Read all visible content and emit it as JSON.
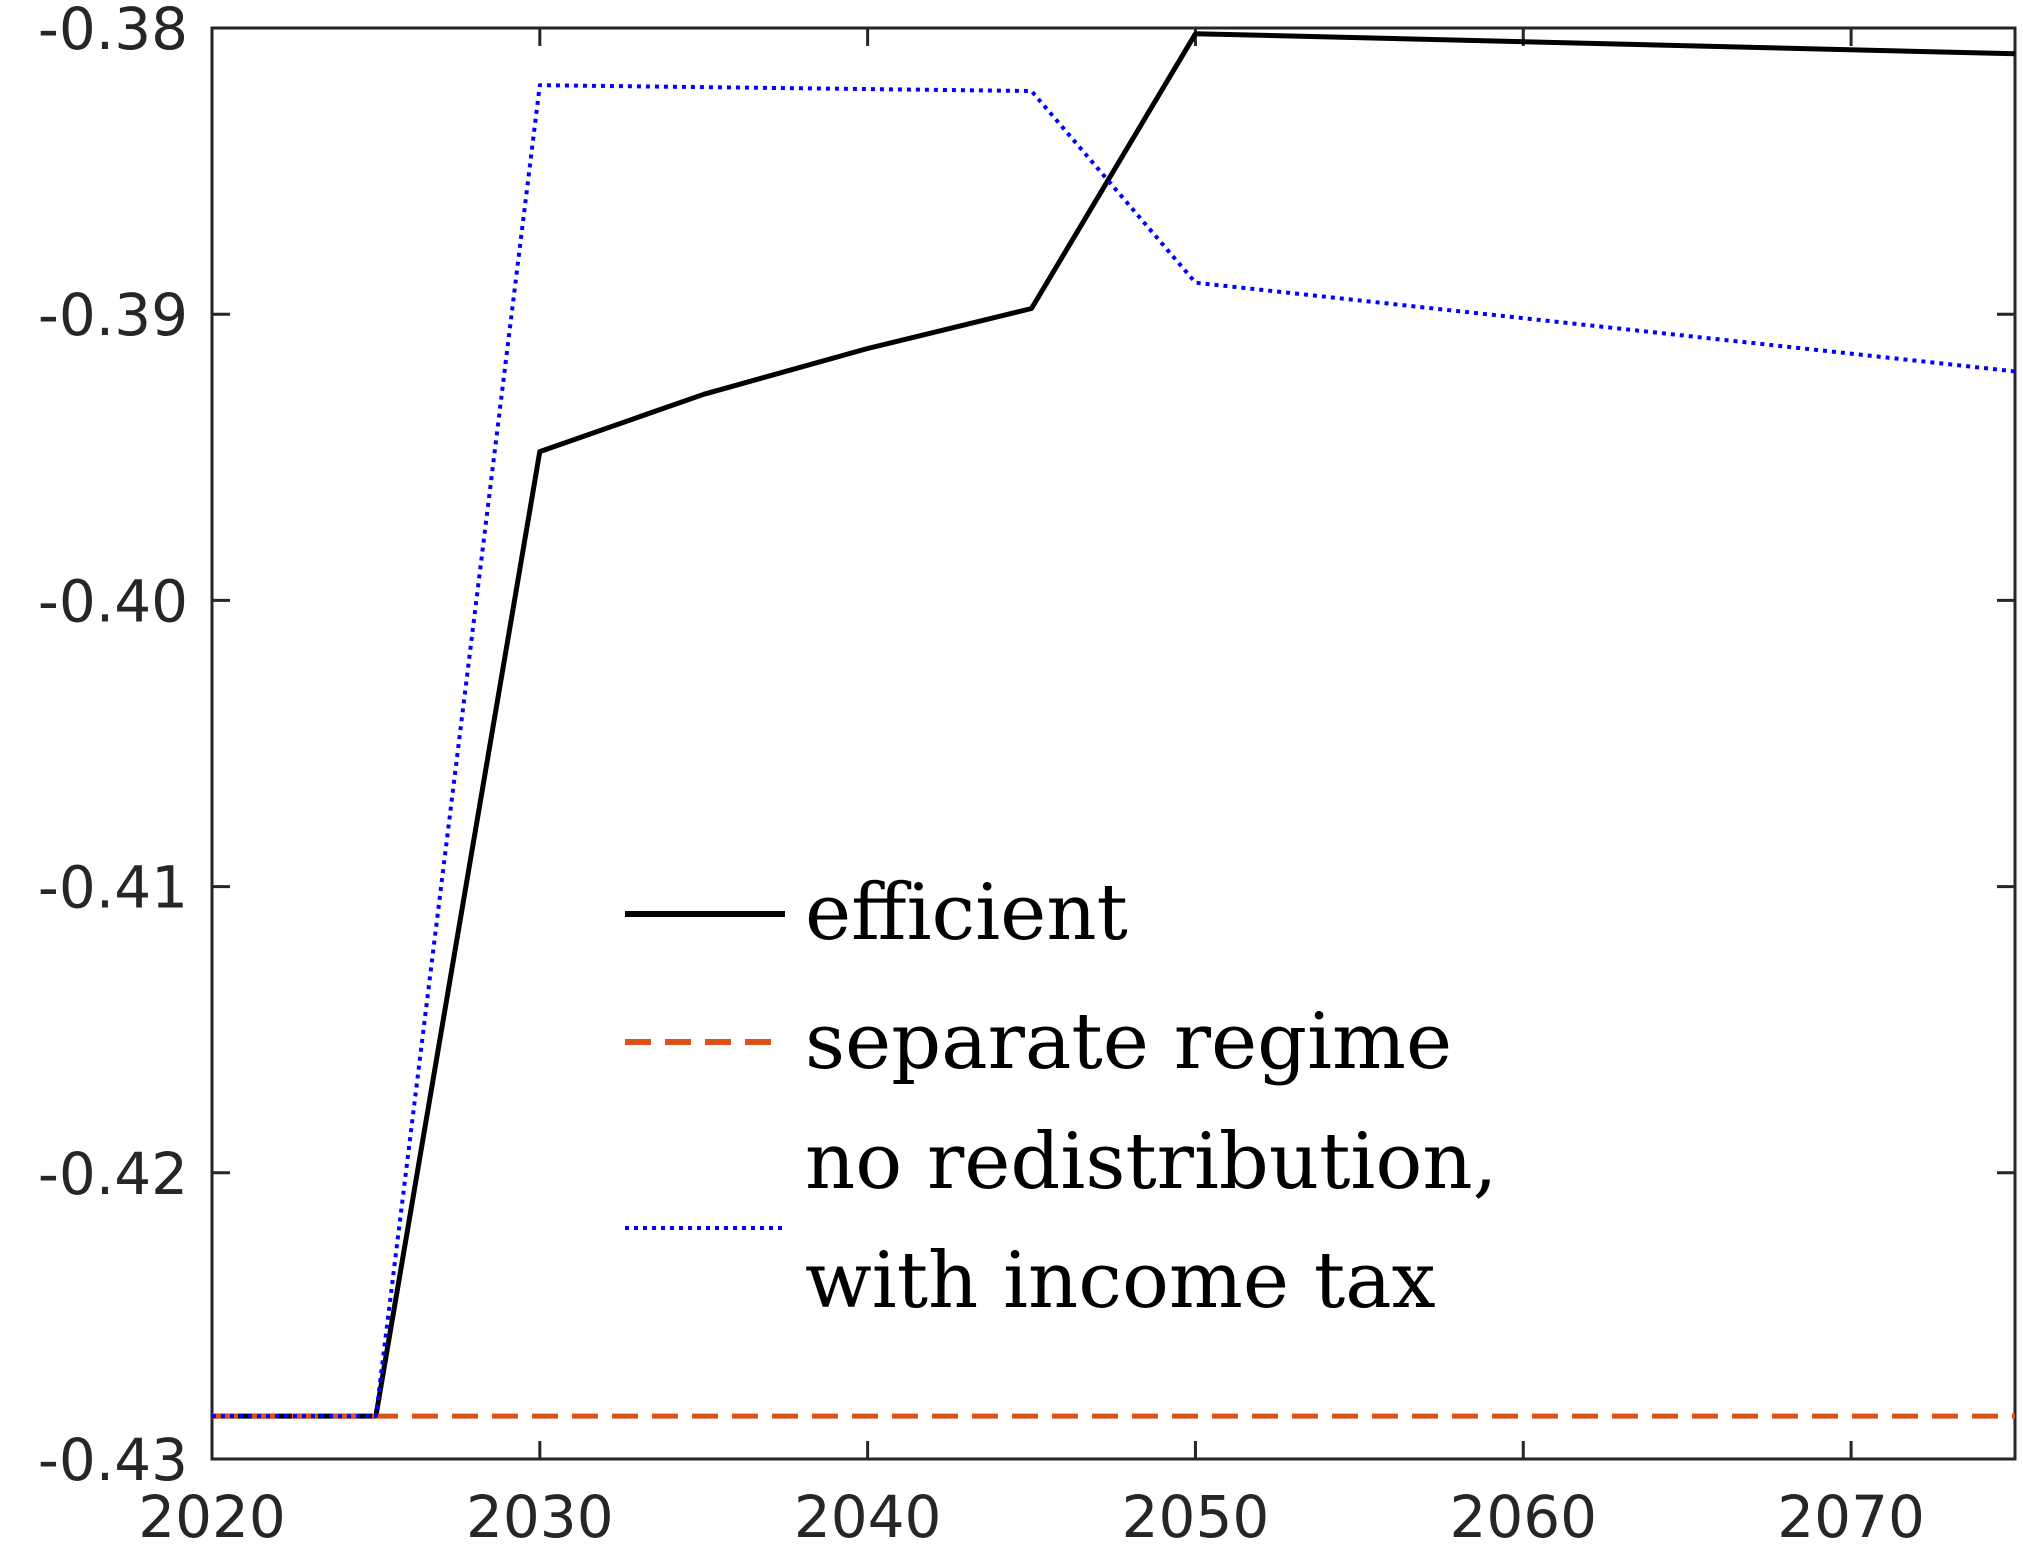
{
  "chart_data": {
    "type": "line",
    "title": "",
    "xlabel": "",
    "ylabel": "",
    "xlim": [
      2020,
      2075
    ],
    "ylim": [
      -0.43,
      -0.38
    ],
    "xticks": [
      "2020",
      "2030",
      "2040",
      "2050",
      "2060",
      "2070"
    ],
    "yticks": [
      "-0.38",
      "-0.39",
      "-0.40",
      "-0.41",
      "-0.42",
      "-0.43"
    ],
    "grid": false,
    "legend": {
      "placement": "center",
      "entries": [
        "efficient",
        "separate regime",
        "no redistribution,",
        "with income tax"
      ]
    },
    "series": [
      {
        "name": "efficient",
        "color": "#000000",
        "style": "solid",
        "x": [
          2020,
          2025,
          2030,
          2035,
          2040,
          2045,
          2050,
          2075
        ],
        "y": [
          -0.4285,
          -0.4285,
          -0.3948,
          -0.3928,
          -0.3912,
          -0.3898,
          -0.3802,
          -0.3809
        ]
      },
      {
        "name": "separate regime",
        "color": "#d95319",
        "style": "dashed",
        "x": [
          2020,
          2075
        ],
        "y": [
          -0.4285,
          -0.4285
        ]
      },
      {
        "name": "no redistribution, with income tax",
        "color": "#0000ff",
        "style": "dotted",
        "x": [
          2020,
          2025,
          2030,
          2045,
          2050,
          2075
        ],
        "y": [
          -0.4285,
          -0.4285,
          -0.382,
          -0.3822,
          -0.3889,
          -0.392
        ]
      }
    ]
  }
}
